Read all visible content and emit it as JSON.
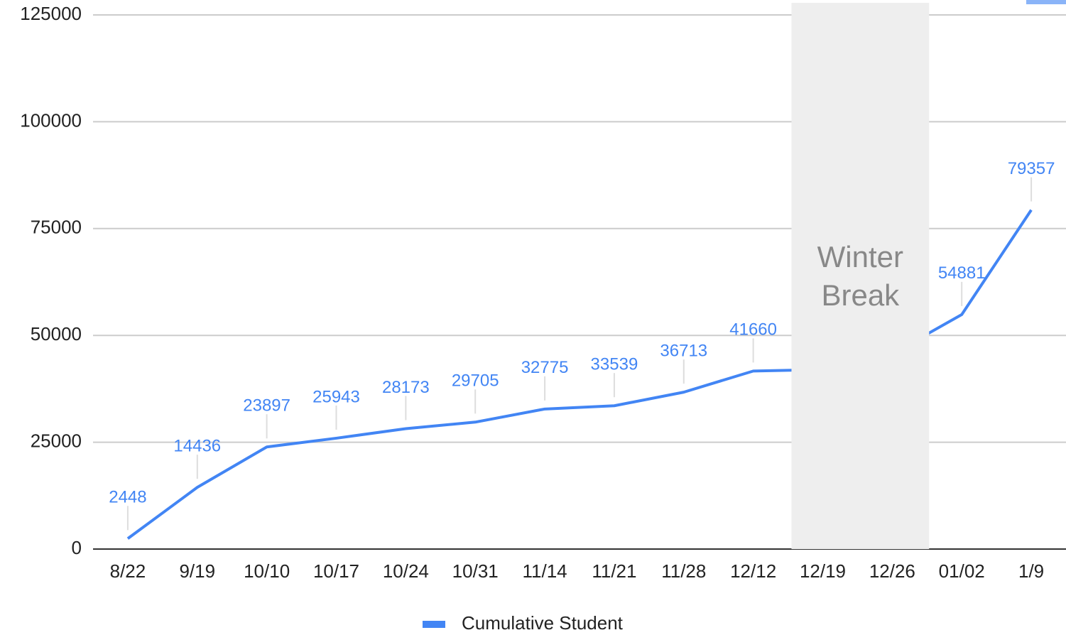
{
  "chart_data": {
    "type": "line",
    "categories": [
      "8/22",
      "9/19",
      "10/10",
      "10/17",
      "10/24",
      "10/31",
      "11/14",
      "11/21",
      "11/28",
      "12/12",
      "12/19",
      "12/26",
      "01/02",
      "1/9"
    ],
    "series": [
      {
        "name": "Cumulative Student",
        "color": "#4285f4",
        "values": [
          2448,
          14436,
          23897,
          25943,
          28173,
          29705,
          32775,
          33539,
          36713,
          41660,
          42000,
          45700,
          54881,
          79357
        ]
      }
    ],
    "ylim": [
      0,
      125000
    ],
    "yticks": [
      0,
      25000,
      50000,
      75000,
      100000,
      125000
    ],
    "grid": true,
    "annotation": {
      "text": "Winter Break",
      "from": "12/19",
      "to": "12/26"
    },
    "legend": "bottom"
  }
}
